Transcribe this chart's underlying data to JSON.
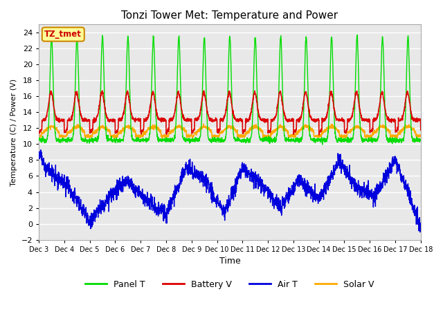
{
  "title": "Tonzi Tower Met: Temperature and Power",
  "xlabel": "Time",
  "ylabel": "Temperature (C) / Power (V)",
  "tz_label": "TZ_tmet",
  "ylim": [
    -2,
    25
  ],
  "yticks": [
    -2,
    0,
    2,
    4,
    6,
    8,
    10,
    12,
    14,
    16,
    18,
    20,
    22,
    24
  ],
  "bg_color": "#ffffff",
  "plot_bg_color": "#e8e8e8",
  "grid_color": "#ffffff",
  "panel_color": "#00dd00",
  "battery_color": "#dd0000",
  "air_color": "#0000dd",
  "solar_color": "#ffaa00",
  "legend_items": [
    "Panel T",
    "Battery V",
    "Air T",
    "Solar V"
  ],
  "n_days": 15,
  "spd": 144,
  "start_day": 3
}
